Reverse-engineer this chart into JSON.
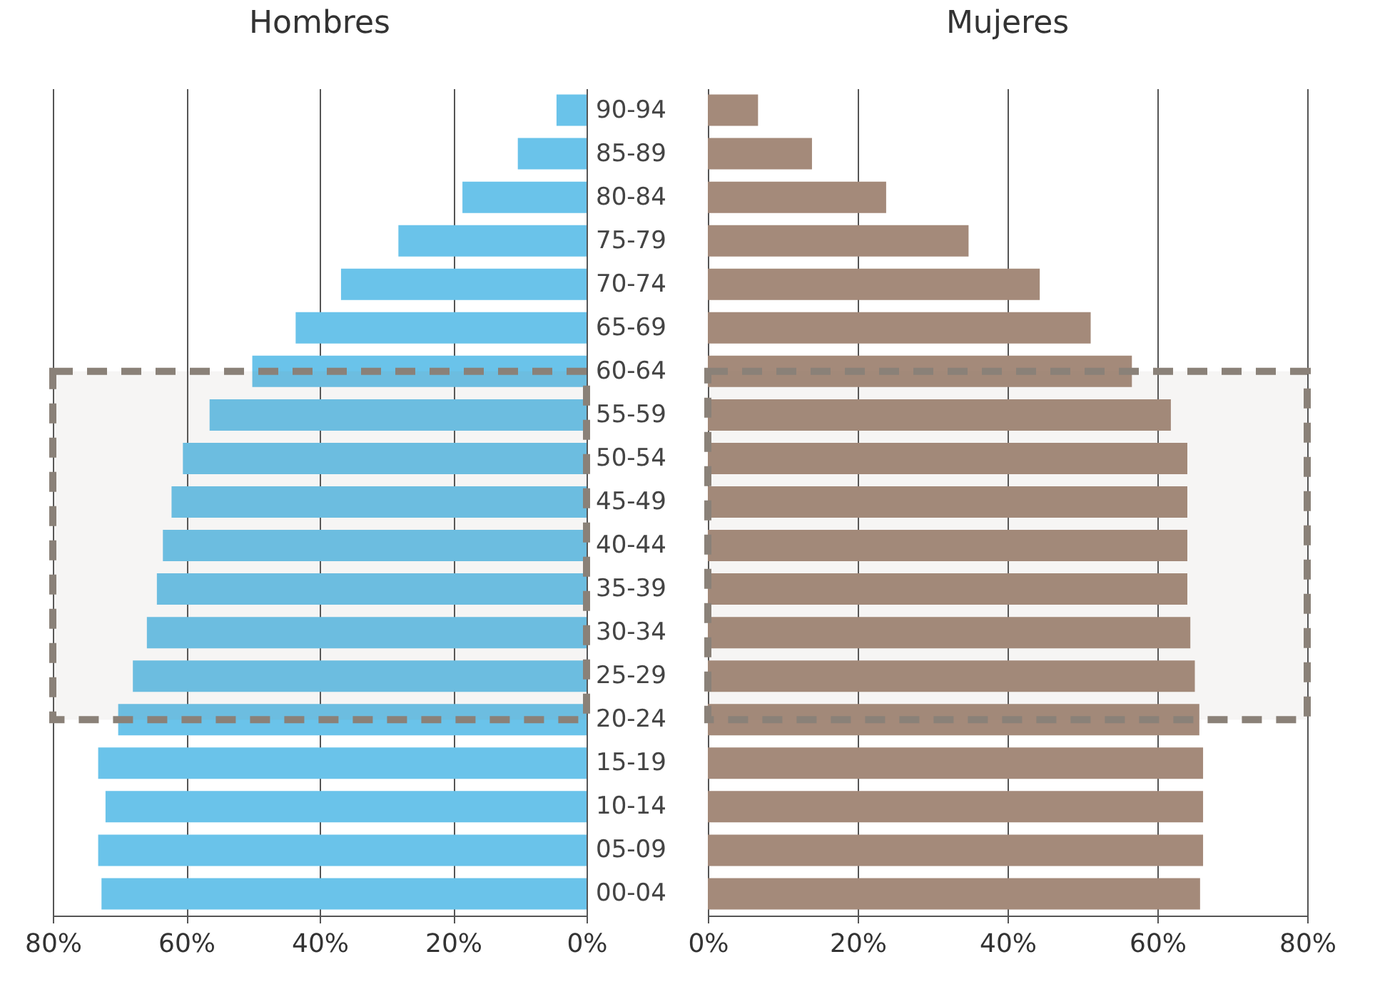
{
  "chart_data": [
    {
      "type": "bar",
      "orientation": "horizontal",
      "title": "Hombres",
      "categories": [
        "90-94",
        "85-89",
        "80-84",
        "75-79",
        "70-74",
        "65-69",
        "60-64",
        "55-59",
        "50-54",
        "45-49",
        "40-44",
        "35-39",
        "30-34",
        "25-29",
        "20-24",
        "15-19",
        "10-14",
        "05-09",
        "00-04"
      ],
      "series": [
        {
          "color": "#6ac3ea",
          "values": [
            4.5,
            10.3,
            18.6,
            28.2,
            36.8,
            43.6,
            50.1,
            56.5,
            60.5,
            62.2,
            63.5,
            64.4,
            65.9,
            68.0,
            70.2,
            73.2,
            72.1,
            73.2,
            72.7
          ]
        }
      ],
      "xlim": [
        80,
        0
      ],
      "xticks": [
        {
          "value": 80,
          "label": "80%"
        },
        {
          "value": 60,
          "label": "60%"
        },
        {
          "value": 40,
          "label": "40%"
        },
        {
          "value": 20,
          "label": "20%"
        },
        {
          "value": 0,
          "label": "0%"
        }
      ],
      "grid": "x",
      "bands": [
        {
          "axis": "y",
          "from": "60-64",
          "to": "20-24",
          "color": "#8a8178"
        }
      ]
    },
    {
      "type": "bar",
      "orientation": "horizontal",
      "title": "Mujeres",
      "categories": [
        "90-94",
        "85-89",
        "80-84",
        "75-79",
        "70-74",
        "65-69",
        "60-64",
        "55-59",
        "50-54",
        "45-49",
        "40-44",
        "35-39",
        "30-34",
        "25-29",
        "20-24",
        "15-19",
        "10-14",
        "05-09",
        "00-04"
      ],
      "series": [
        {
          "color": "#a48a7a",
          "values": [
            6.7,
            13.9,
            23.8,
            34.8,
            44.3,
            51.1,
            56.6,
            61.8,
            64.0,
            64.0,
            64.0,
            64.0,
            64.4,
            65.0,
            65.6,
            66.1,
            66.1,
            66.1,
            65.7
          ]
        }
      ],
      "xlim": [
        0,
        80
      ],
      "xticks": [
        {
          "value": 0,
          "label": "0%"
        },
        {
          "value": 20,
          "label": "20%"
        },
        {
          "value": 40,
          "label": "40%"
        },
        {
          "value": 60,
          "label": "60%"
        },
        {
          "value": 80,
          "label": "80%"
        }
      ],
      "grid": "x",
      "tick_labels": "x",
      "bands": [
        {
          "axis": "y",
          "from": "60-64",
          "to": "20-24",
          "color": "#8a8178"
        }
      ]
    }
  ]
}
